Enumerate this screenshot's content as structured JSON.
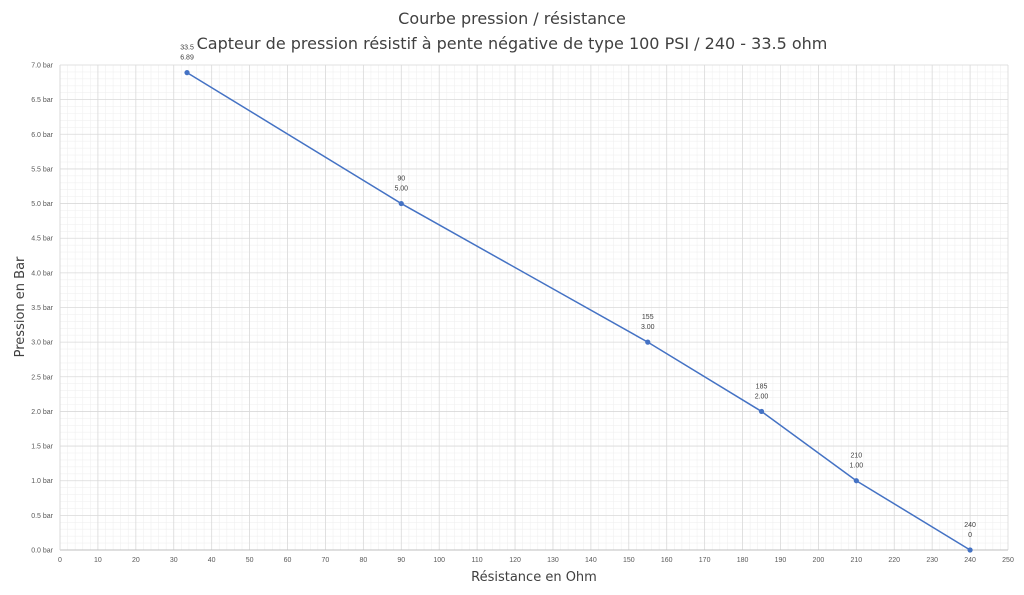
{
  "chart_data": {
    "type": "scatter",
    "title": "Courbe pression / résistance",
    "subtitle": "Capteur de pression résistif à pente négative de type 100 PSI / 240 - 33.5 ohm",
    "xlabel": "Résistance en Ohm",
    "ylabel": "Pression en Bar",
    "xlim": [
      0,
      250
    ],
    "ylim": [
      0,
      7
    ],
    "x_ticks": [
      "0",
      "10",
      "20",
      "30",
      "40",
      "50",
      "60",
      "70",
      "80",
      "90",
      "100",
      "110",
      "120",
      "130",
      "140",
      "150",
      "160",
      "170",
      "180",
      "190",
      "200",
      "210",
      "220",
      "230",
      "240",
      "250"
    ],
    "y_ticks": [
      "0.0 bar",
      "0.5 bar",
      "1.0 bar",
      "1.5 bar",
      "2.0 bar",
      "2.5 bar",
      "3.0 bar",
      "3.5 bar",
      "4.0 bar",
      "4.5 bar",
      "5.0 bar",
      "5.5 bar",
      "6.0 bar",
      "6.5 bar",
      "7.0 bar"
    ],
    "grid": true,
    "minor_grid": true,
    "legend": "none",
    "series": [
      {
        "color": "#4472c4",
        "points": [
          {
            "x": 33.5,
            "y": 6.89,
            "label_x": "33.5",
            "label_y": "6.89"
          },
          {
            "x": 90,
            "y": 5.0,
            "label_x": "90",
            "label_y": "5.00"
          },
          {
            "x": 155,
            "y": 3.0,
            "label_x": "155",
            "label_y": "3.00"
          },
          {
            "x": 185,
            "y": 2.0,
            "label_x": "185",
            "label_y": "2.00"
          },
          {
            "x": 210,
            "y": 1.0,
            "label_x": "210",
            "label_y": "1.00"
          },
          {
            "x": 240,
            "y": 0,
            "label_x": "240",
            "label_y": "0"
          }
        ]
      }
    ]
  }
}
